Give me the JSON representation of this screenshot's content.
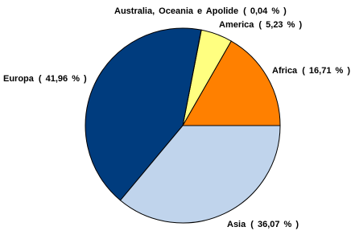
{
  "chart_data": {
    "type": "pie",
    "categories": [
      "Africa",
      "America",
      "Australia, Oceania e Apolide",
      "Europa",
      "Asia"
    ],
    "values": [
      16.71,
      5.23,
      0.04,
      41.96,
      36.07
    ],
    "value_labels": [
      "( 16,71 % )",
      "( 5,23 % )",
      "( 0,04 % )",
      "( 41,96 % )",
      "( 36,07 % )"
    ],
    "colors": [
      "#ff8000",
      "#ffff80",
      "#ffffff",
      "#003c7e",
      "#c0d4ec"
    ]
  }
}
